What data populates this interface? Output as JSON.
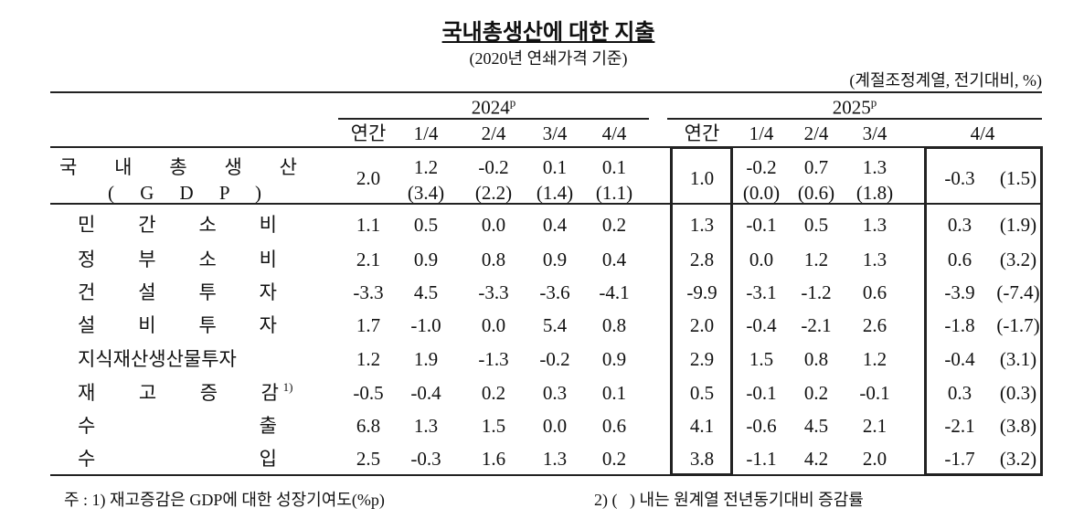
{
  "header": {
    "title": "국내총생산에 대한 지출",
    "subtitle": "(2020년 연쇄가격 기준)",
    "unit": "(계절조정계열, 전기대비, %)"
  },
  "table": {
    "years": [
      {
        "year": "2024",
        "sup": "p"
      },
      {
        "year": "2025",
        "sup": "p"
      }
    ],
    "columns": [
      "연간",
      "1/4",
      "2/4",
      "3/4",
      "4/4",
      "연간",
      "1/4",
      "2/4",
      "3/4",
      "4/4"
    ],
    "rows": [
      {
        "label": "국 내 총 생 산",
        "label2": "( G D P )",
        "cells": [
          {
            "v": "2.0"
          },
          {
            "v": "1.2",
            "yoy": "(3.4)"
          },
          {
            "v": "-0.2",
            "yoy": "(2.2)"
          },
          {
            "v": "0.1",
            "yoy": "(1.4)"
          },
          {
            "v": "0.1",
            "yoy": "(1.1)"
          },
          {
            "v": "1.0"
          },
          {
            "v": "-0.2",
            "yoy": "(0.0)"
          },
          {
            "v": "0.7",
            "yoy": "(0.6)"
          },
          {
            "v": "1.3",
            "yoy": "(1.8)"
          },
          {
            "v": "-0.3",
            "yoy": "(1.5)"
          }
        ]
      },
      {
        "label": "민 간 소 비",
        "cells": [
          {
            "v": "1.1"
          },
          {
            "v": "0.5"
          },
          {
            "v": "0.0"
          },
          {
            "v": "0.4"
          },
          {
            "v": "0.2"
          },
          {
            "v": "1.3"
          },
          {
            "v": "-0.1"
          },
          {
            "v": "0.5"
          },
          {
            "v": "1.3"
          },
          {
            "v": "0.3",
            "yoy": "(1.9)"
          }
        ]
      },
      {
        "label": "정 부 소 비",
        "cells": [
          {
            "v": "2.1"
          },
          {
            "v": "0.9"
          },
          {
            "v": "0.8"
          },
          {
            "v": "0.9"
          },
          {
            "v": "0.4"
          },
          {
            "v": "2.8"
          },
          {
            "v": "0.0"
          },
          {
            "v": "1.2"
          },
          {
            "v": "1.3"
          },
          {
            "v": "0.6",
            "yoy": "(3.2)"
          }
        ]
      },
      {
        "label": "건 설 투 자",
        "cells": [
          {
            "v": "-3.3"
          },
          {
            "v": "4.5"
          },
          {
            "v": "-3.3"
          },
          {
            "v": "-3.6"
          },
          {
            "v": "-4.1"
          },
          {
            "v": "-9.9"
          },
          {
            "v": "-3.1"
          },
          {
            "v": "-1.2"
          },
          {
            "v": "0.6"
          },
          {
            "v": "-3.9",
            "yoy": "(-7.4)"
          }
        ]
      },
      {
        "label": "설 비 투 자",
        "cells": [
          {
            "v": "1.7"
          },
          {
            "v": "-1.0"
          },
          {
            "v": "0.0"
          },
          {
            "v": "5.4"
          },
          {
            "v": "0.8"
          },
          {
            "v": "2.0"
          },
          {
            "v": "-0.4"
          },
          {
            "v": "-2.1"
          },
          {
            "v": "2.6"
          },
          {
            "v": "-1.8",
            "yoy": "(-1.7)"
          }
        ]
      },
      {
        "label": "지식재산생산물투자",
        "cells": [
          {
            "v": "1.2"
          },
          {
            "v": "1.9"
          },
          {
            "v": "-1.3"
          },
          {
            "v": "-0.2"
          },
          {
            "v": "0.9"
          },
          {
            "v": "2.9"
          },
          {
            "v": "1.5"
          },
          {
            "v": "0.8"
          },
          {
            "v": "1.2"
          },
          {
            "v": "-0.4",
            "yoy": "(3.1)"
          }
        ]
      },
      {
        "label": "재 고 증 감",
        "sup": "1)",
        "cells": [
          {
            "v": "-0.5"
          },
          {
            "v": "-0.4"
          },
          {
            "v": "0.2"
          },
          {
            "v": "0.3"
          },
          {
            "v": "0.1"
          },
          {
            "v": "0.5"
          },
          {
            "v": "-0.1"
          },
          {
            "v": "0.2"
          },
          {
            "v": "-0.1"
          },
          {
            "v": "0.3",
            "yoy": "(0.3)"
          }
        ]
      },
      {
        "label": "수 출",
        "cells": [
          {
            "v": "6.8"
          },
          {
            "v": "1.3"
          },
          {
            "v": "1.5"
          },
          {
            "v": "0.0"
          },
          {
            "v": "0.6"
          },
          {
            "v": "4.1"
          },
          {
            "v": "-0.6"
          },
          {
            "v": "4.5"
          },
          {
            "v": "2.1"
          },
          {
            "v": "-2.1",
            "yoy": "(3.8)"
          }
        ]
      },
      {
        "label": "수 입",
        "cells": [
          {
            "v": "2.5"
          },
          {
            "v": "-0.3"
          },
          {
            "v": "1.6"
          },
          {
            "v": "1.3"
          },
          {
            "v": "0.2"
          },
          {
            "v": "3.8"
          },
          {
            "v": "-1.1"
          },
          {
            "v": "4.2"
          },
          {
            "v": "2.0"
          },
          {
            "v": "-1.7",
            "yoy": "(3.2)"
          }
        ]
      }
    ]
  },
  "footnotes": [
    "주 : 1) 재고증감은 GDP에 대한 성장기여도(%p)",
    "2) (   ) 내는 원계열 전년동기대비 증감률"
  ]
}
